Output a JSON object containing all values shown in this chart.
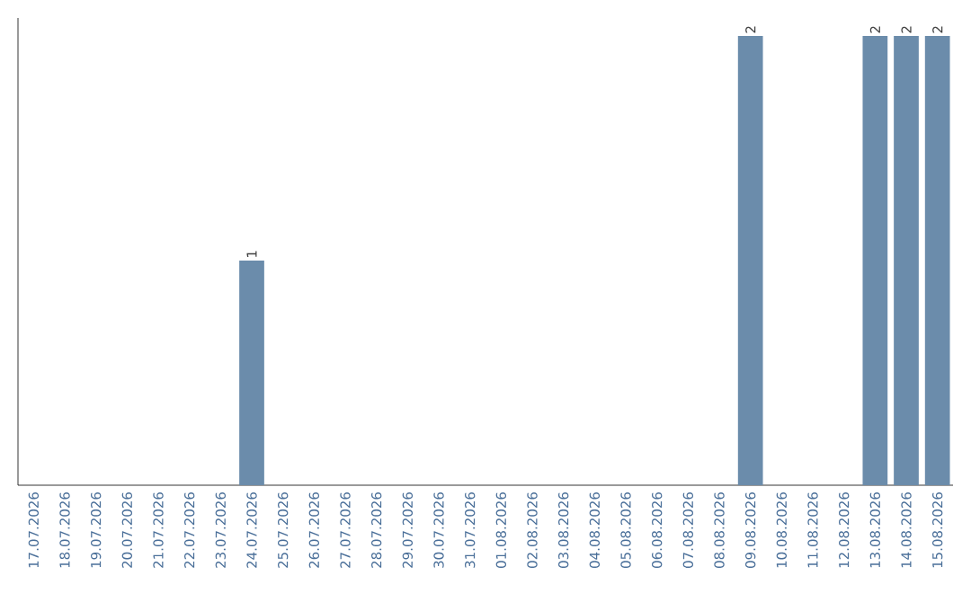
{
  "chart_data": {
    "type": "bar",
    "categories": [
      "17.07.2026",
      "18.07.2026",
      "19.07.2026",
      "20.07.2026",
      "21.07.2026",
      "22.07.2026",
      "23.07.2026",
      "24.07.2026",
      "25.07.2026",
      "26.07.2026",
      "27.07.2026",
      "28.07.2026",
      "29.07.2026",
      "30.07.2026",
      "31.07.2026",
      "01.08.2026",
      "02.08.2026",
      "03.08.2026",
      "04.08.2026",
      "05.08.2026",
      "06.08.2026",
      "07.08.2026",
      "08.08.2026",
      "09.08.2026",
      "10.08.2026",
      "11.08.2026",
      "12.08.2026",
      "13.08.2026",
      "14.08.2026",
      "15.08.2026"
    ],
    "values": [
      0,
      0,
      0,
      0,
      0,
      0,
      0,
      1,
      0,
      0,
      0,
      0,
      0,
      0,
      0,
      0,
      0,
      0,
      0,
      0,
      0,
      0,
      0,
      2,
      0,
      0,
      0,
      2,
      2,
      2
    ],
    "value_labels": [
      null,
      null,
      null,
      null,
      null,
      null,
      null,
      "1",
      null,
      null,
      null,
      null,
      null,
      null,
      null,
      null,
      null,
      null,
      null,
      null,
      null,
      null,
      null,
      "2",
      null,
      null,
      null,
      "2",
      "2",
      "2"
    ],
    "color": "#6b8cab",
    "ylim": [
      0,
      2.08
    ],
    "tick_labels": "x",
    "grid": false
  }
}
